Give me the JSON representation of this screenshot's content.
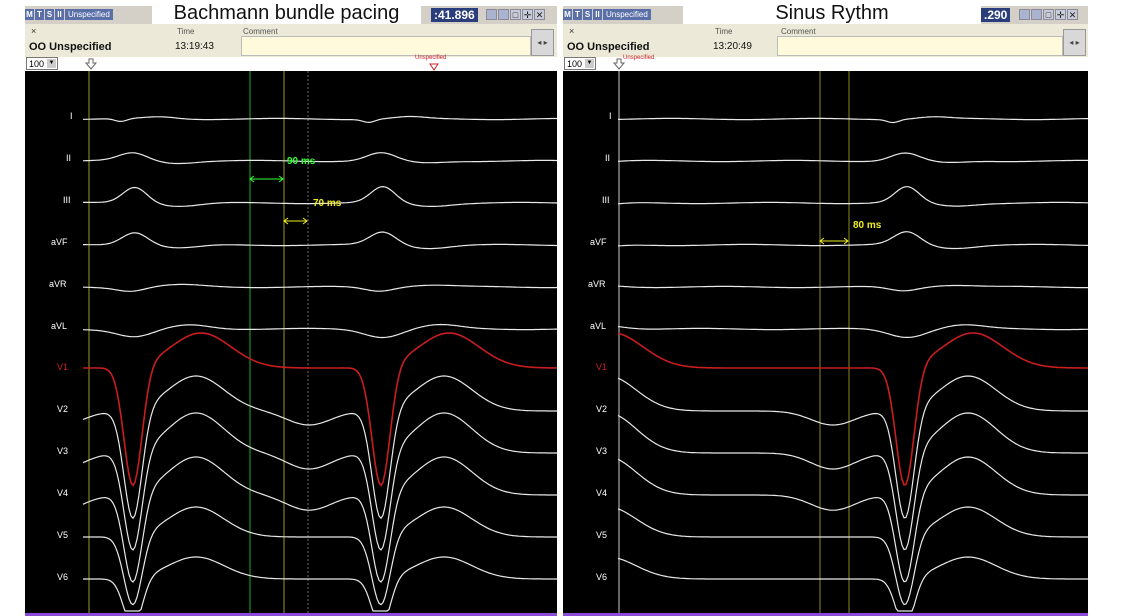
{
  "left": {
    "title": "Bachmann bundle pacing",
    "tab_buttons": [
      "M",
      "T",
      "S",
      "II"
    ],
    "tab_label": "Unspecified",
    "time_badge": ":41.896",
    "window_buttons": [
      "",
      "",
      "□",
      "✛",
      "✕"
    ],
    "close": "×",
    "description": "OO Unspecified",
    "time_header": "Time",
    "time_value": "13:19:43",
    "comment_header": "Comment",
    "zoom": "100",
    "marker_label": "Unspecified",
    "leads": [
      "I",
      "II",
      "III",
      "aVF",
      "aVR",
      "aVL",
      "V1",
      "V2",
      "V3",
      "V4",
      "V5",
      "V6"
    ],
    "measurements": [
      "90 ms",
      "70 ms"
    ]
  },
  "right": {
    "title": "Sinus Rythm",
    "tab_buttons": [
      "M",
      "T",
      "S",
      "II"
    ],
    "tab_label": "Unspecified",
    "time_badge": ".290",
    "window_buttons": [
      "",
      "",
      "□",
      "✛",
      "✕"
    ],
    "close": "×",
    "description": "OO Unspecified",
    "time_header": "Time",
    "time_value": "13:20:49",
    "comment_header": "Comment",
    "zoom": "100",
    "marker_label": "Unspecified",
    "leads": [
      "I",
      "II",
      "III",
      "aVF",
      "aVR",
      "aVL",
      "V1",
      "V2",
      "V3",
      "V4",
      "V5",
      "V6"
    ],
    "measurements": [
      "80 ms"
    ]
  },
  "colors": {
    "trace": "#e8e8e8",
    "v1_trace": "#c81e1e",
    "caliper_green": "#33ff33",
    "caliper_yellow": "#eeee22",
    "background": "#000000"
  }
}
